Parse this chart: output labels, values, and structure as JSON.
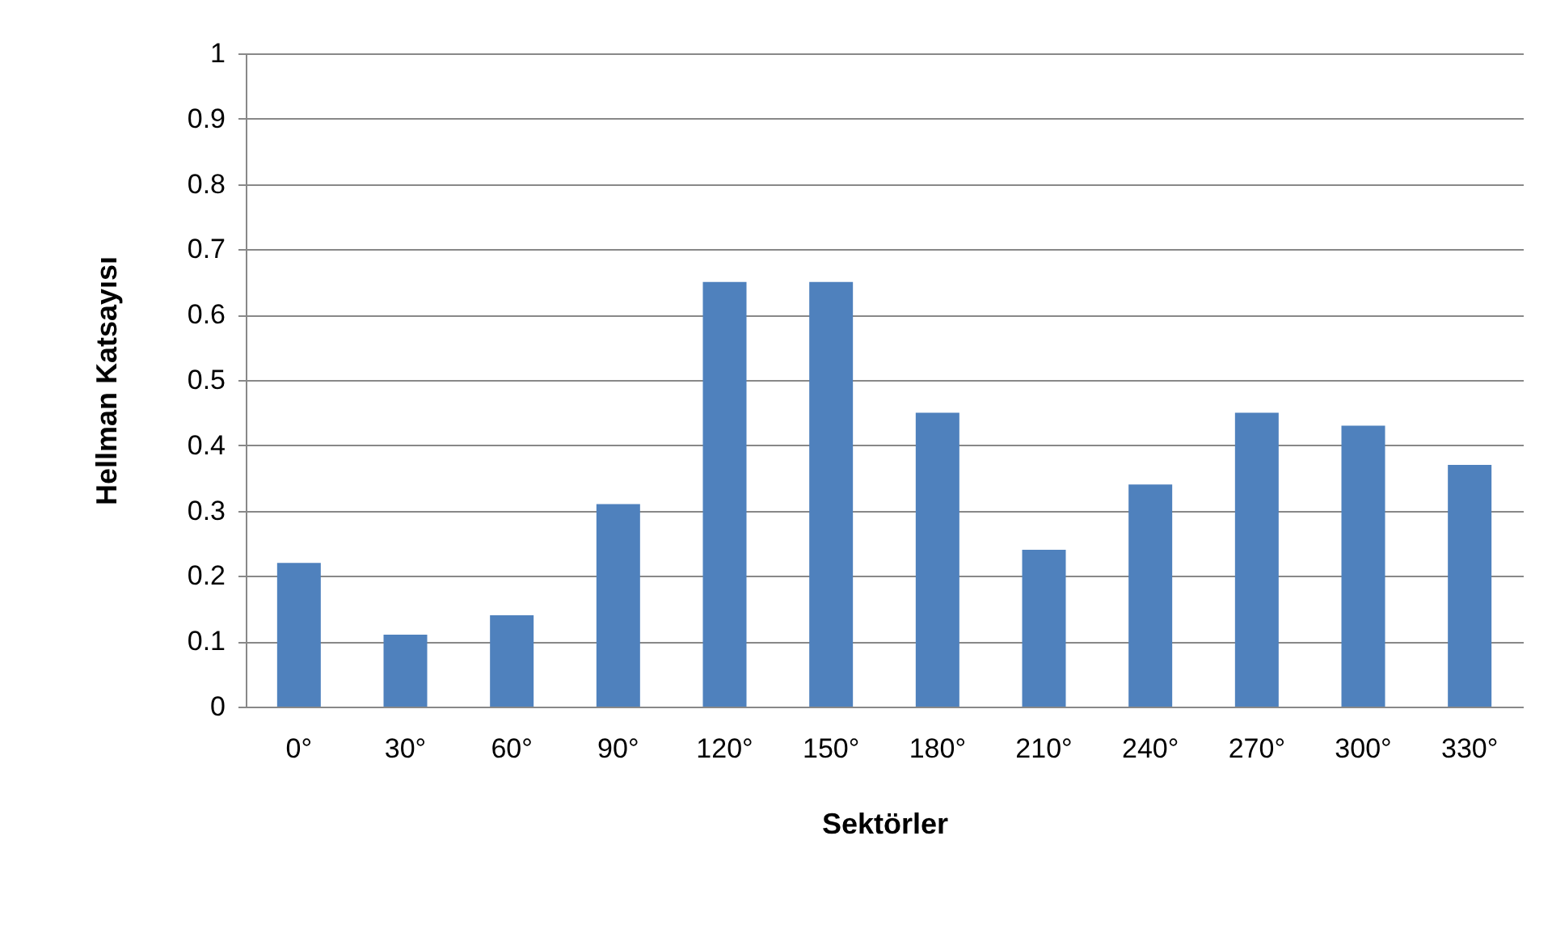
{
  "chart_data": {
    "type": "bar",
    "xlabel": "Sektörler",
    "ylabel": "Hellman Katsayısı",
    "categories": [
      "0°",
      "30°",
      "60°",
      "90°",
      "120°",
      "150°",
      "180°",
      "210°",
      "240°",
      "270°",
      "300°",
      "330°"
    ],
    "values": [
      0.22,
      0.11,
      0.14,
      0.31,
      0.65,
      0.65,
      0.45,
      0.24,
      0.34,
      0.45,
      0.43,
      0.37
    ],
    "color": "#4f81bd",
    "ylim": [
      0,
      1
    ],
    "yticks": [
      0,
      0.1,
      0.2,
      0.3,
      0.4,
      0.5,
      0.6,
      0.7,
      0.8,
      0.9,
      1
    ],
    "grid": "y"
  }
}
